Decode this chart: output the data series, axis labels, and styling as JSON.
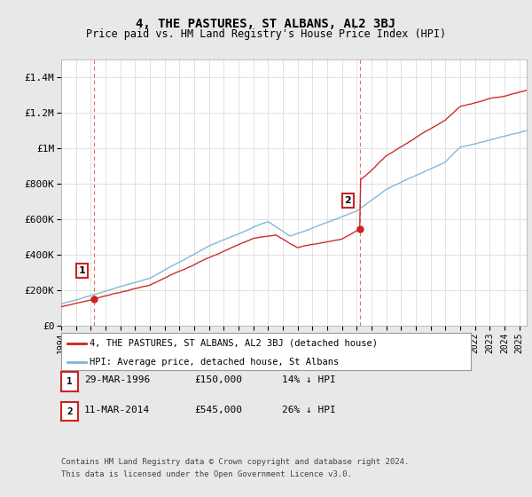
{
  "title": "4, THE PASTURES, ST ALBANS, AL2 3BJ",
  "subtitle": "Price paid vs. HM Land Registry's House Price Index (HPI)",
  "ylim": [
    0,
    1500000
  ],
  "yticks": [
    0,
    200000,
    400000,
    600000,
    800000,
    1000000,
    1200000,
    1400000
  ],
  "ytick_labels": [
    "£0",
    "£200K",
    "£400K",
    "£600K",
    "£800K",
    "£1M",
    "£1.2M",
    "£1.4M"
  ],
  "background_color": "#e8e8e8",
  "plot_bg_color": "#ffffff",
  "grid_color": "#cccccc",
  "hpi_color": "#7fb3d3",
  "price_color": "#cc2222",
  "dashed_line_color": "#ee4444",
  "sale1_year": 1996.23,
  "sale1_price": 150000,
  "sale2_year": 2014.19,
  "sale2_price": 545000,
  "sale1_date": "29-MAR-1996",
  "sale1_pct": "14% ↓ HPI",
  "sale2_date": "11-MAR-2014",
  "sale2_pct": "26% ↓ HPI",
  "legend_label1": "4, THE PASTURES, ST ALBANS, AL2 3BJ (detached house)",
  "legend_label2": "HPI: Average price, detached house, St Albans",
  "footer1": "Contains HM Land Registry data © Crown copyright and database right 2024.",
  "footer2": "This data is licensed under the Open Government Licence v3.0.",
  "xmin": 1994,
  "xmax": 2025.5
}
